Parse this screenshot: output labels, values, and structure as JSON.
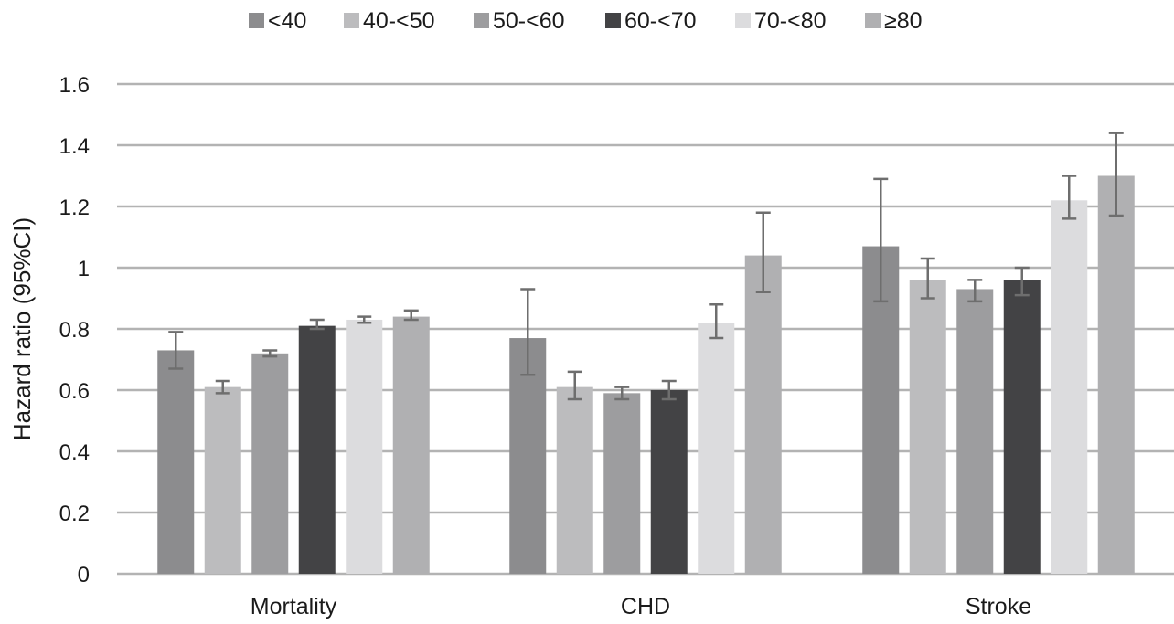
{
  "chart_data": {
    "type": "bar",
    "title": "",
    "xlabel": "",
    "ylabel": "Hazard ratio (95%CI)",
    "ylim": [
      0,
      1.6
    ],
    "yticks": [
      "0",
      "0.2",
      "0.4",
      "0.6",
      "0.8",
      "1",
      "1.2",
      "1.4",
      "1.6"
    ],
    "grid": true,
    "legend_position": "top",
    "categories": [
      "Mortality",
      "CHD",
      "Stroke"
    ],
    "series": [
      {
        "name": "<40",
        "color": "#8c8c8e",
        "values": [
          0.73,
          0.77,
          1.07
        ],
        "ci_low": [
          0.67,
          0.65,
          0.89
        ],
        "ci_high": [
          0.79,
          0.93,
          1.29
        ]
      },
      {
        "name": "40-<50",
        "color": "#bcbcbe",
        "values": [
          0.61,
          0.61,
          0.96
        ],
        "ci_low": [
          0.59,
          0.57,
          0.9
        ],
        "ci_high": [
          0.63,
          0.66,
          1.03
        ]
      },
      {
        "name": "50-<60",
        "color": "#9d9d9f",
        "values": [
          0.72,
          0.59,
          0.93
        ],
        "ci_low": [
          0.71,
          0.57,
          0.89
        ],
        "ci_high": [
          0.73,
          0.61,
          0.96
        ]
      },
      {
        "name": "60-<70",
        "color": "#434345",
        "values": [
          0.81,
          0.6,
          0.96
        ],
        "ci_low": [
          0.8,
          0.57,
          0.91
        ],
        "ci_high": [
          0.83,
          0.63,
          1.0
        ]
      },
      {
        "name": "70-<80",
        "color": "#dcdcde",
        "values": [
          0.83,
          0.82,
          1.22
        ],
        "ci_low": [
          0.82,
          0.77,
          1.16
        ],
        "ci_high": [
          0.84,
          0.88,
          1.3
        ]
      },
      {
        "name": "≥80",
        "color": "#b0b0b2",
        "values": [
          0.84,
          1.04,
          1.3
        ],
        "ci_low": [
          0.83,
          0.92,
          1.17
        ],
        "ci_high": [
          0.86,
          1.18,
          1.44
        ]
      }
    ]
  },
  "colors": {
    "grid": "#b3b3b3",
    "error_bar": "#6e6e6e",
    "text": "#1a1a1a"
  }
}
